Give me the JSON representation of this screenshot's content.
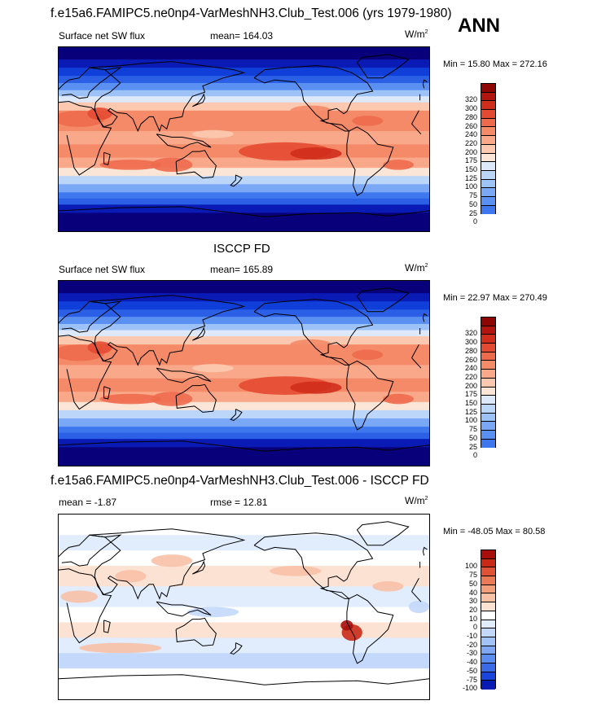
{
  "header": {
    "title": "f.e15a6.FAMIPC5.ne0np4-VarMeshNH3.Club_Test.006 (yrs 1979-1980)",
    "season": "ANN"
  },
  "colors": {
    "positive_levels": [
      "#08007a",
      "#0a1ab5",
      "#0f3fd8",
      "#2a5fe6",
      "#3f78ee",
      "#5b90f3",
      "#7aa8f6",
      "#9cc2f8",
      "#bcd6fa",
      "#dde9fb",
      "#fbe5d6",
      "#fcc9b0",
      "#f9a98a",
      "#f48a68",
      "#ee6a4c",
      "#e44a32",
      "#d02d1c",
      "#b41410",
      "#8e0505"
    ],
    "diff_levels": [
      "#08007a",
      "#0a1ab5",
      "#1a44dd",
      "#3a6ae8",
      "#5b8cf0",
      "#7fa7f4",
      "#a3c2f7",
      "#c3d8fa",
      "#e1ecfc",
      "#ffffff",
      "#fce2d3",
      "#f8c1a6",
      "#f39f7c",
      "#eb7a56",
      "#df5236",
      "#c92a18",
      "#a80e0c",
      "#8e0505"
    ],
    "land_outline": "#000000"
  },
  "panels": [
    {
      "heading": "",
      "left_label": "Surface net SW flux",
      "center_label": "mean= 164.03",
      "units": "W/m",
      "units_sup": "2",
      "minmax": "Min =  15.80 Max = 272.16"
    },
    {
      "heading": "ISCCP FD",
      "left_label": "Surface net SW flux",
      "center_label": "mean= 165.89",
      "units": "W/m",
      "units_sup": "2",
      "minmax": "Min =  22.97 Max = 270.49"
    },
    {
      "heading": "f.e15a6.FAMIPC5.ne0np4-VarMeshNH3.Club_Test.006 - ISCCP FD",
      "left_label": "mean =  -1.87",
      "center_label": "rmse =  12.81",
      "units": "W/m",
      "units_sup": "2",
      "minmax": "Min = -48.05 Max =  80.58"
    }
  ],
  "chart_data": [
    {
      "type": "heatmap",
      "title": "Surface net SW flux",
      "mean": 164.03,
      "min": 15.8,
      "max": 272.16,
      "units": "W/m2",
      "colorbar_levels": [
        "320",
        "300",
        "280",
        "260",
        "240",
        "220",
        "200",
        "175",
        "150",
        "125",
        "100",
        "75",
        "50",
        "25",
        "0"
      ]
    },
    {
      "type": "heatmap",
      "title": "Surface net SW flux",
      "mean": 165.89,
      "min": 22.97,
      "max": 270.49,
      "units": "W/m2",
      "colorbar_levels": [
        "320",
        "300",
        "280",
        "260",
        "240",
        "220",
        "200",
        "175",
        "150",
        "125",
        "100",
        "75",
        "50",
        "25",
        "0"
      ]
    },
    {
      "type": "heatmap",
      "title": "f.e15a6.FAMIPC5.ne0np4-VarMeshNH3.Club_Test.006 - ISCCP FD",
      "mean": -1.87,
      "rmse": 12.81,
      "min": -48.05,
      "max": 80.58,
      "units": "W/m2",
      "colorbar_levels": [
        "100",
        "75",
        "50",
        "40",
        "30",
        "20",
        "10",
        "0",
        "-10",
        "-20",
        "-30",
        "-40",
        "-50",
        "-75",
        "-100"
      ]
    }
  ]
}
